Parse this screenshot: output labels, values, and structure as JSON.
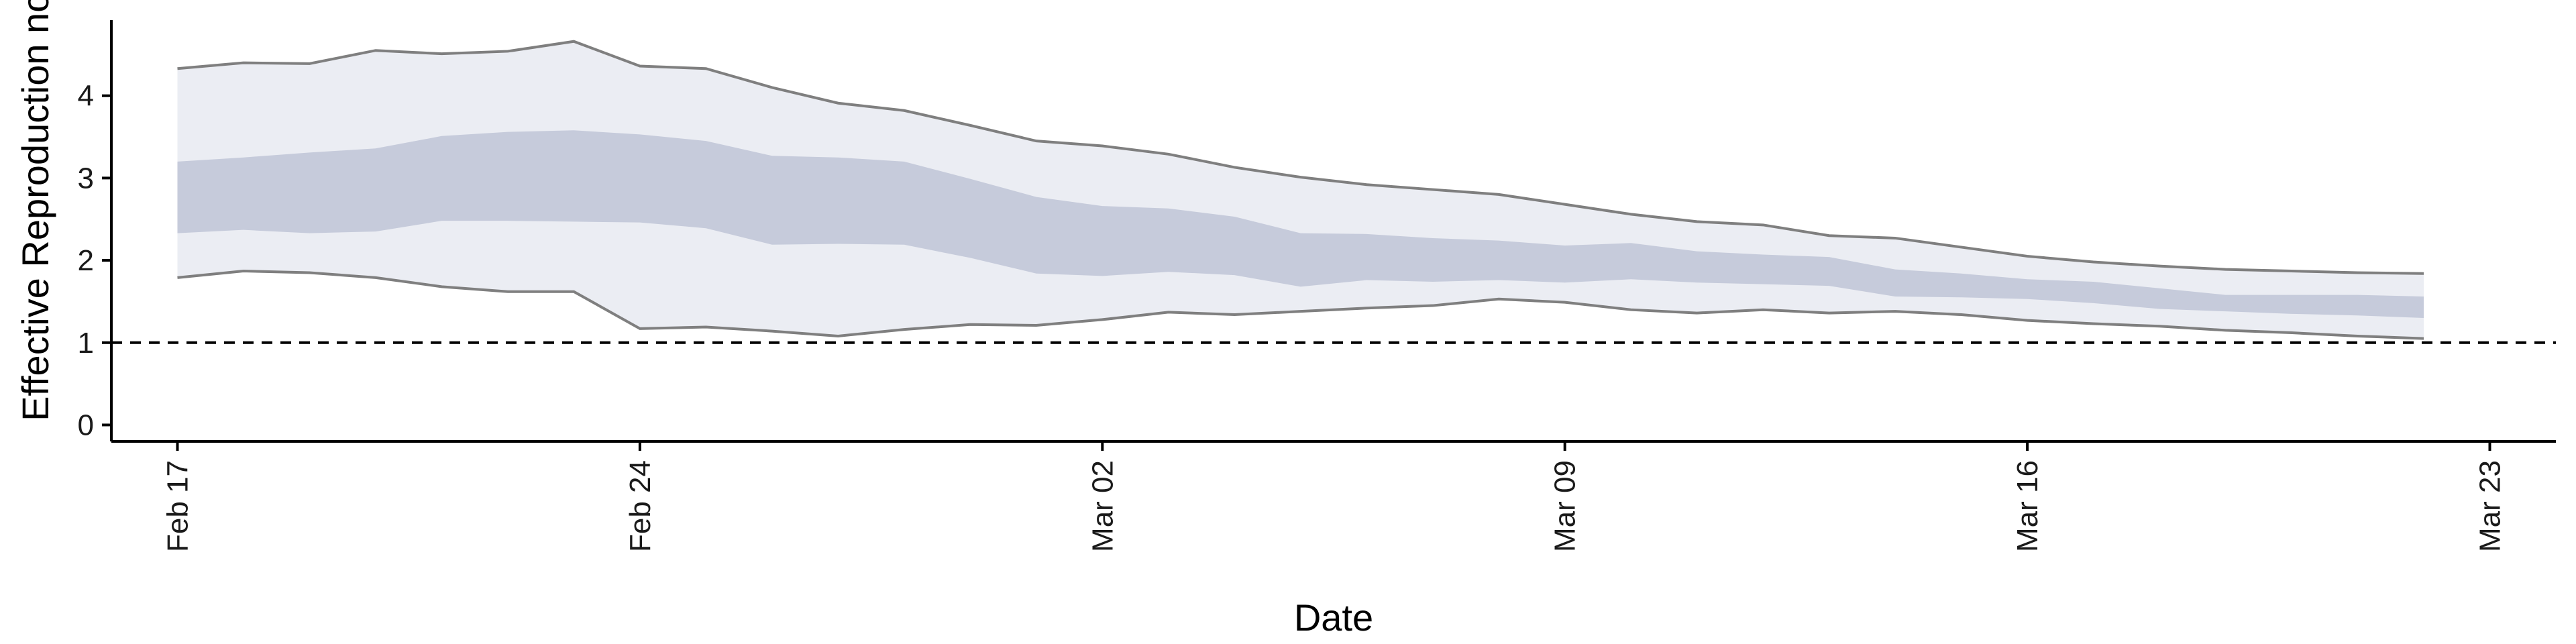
{
  "chart_data": {
    "type": "area",
    "ylabel": "Effective Reproduction no.",
    "xlabel": "Date",
    "x_ticks": [
      {
        "date": "2020-02-17",
        "label": "Feb 17"
      },
      {
        "date": "2020-02-24",
        "label": "Feb 24"
      },
      {
        "date": "2020-03-02",
        "label": "Mar 02"
      },
      {
        "date": "2020-03-09",
        "label": "Mar 09"
      },
      {
        "date": "2020-03-16",
        "label": "Mar 16"
      },
      {
        "date": "2020-03-23",
        "label": "Mar 23"
      }
    ],
    "y_ticks": [
      0,
      1,
      2,
      3,
      4
    ],
    "xlim": [
      "2020-02-16",
      "2020-03-24"
    ],
    "ylim": [
      -0.2,
      5.0
    ],
    "reference_line": {
      "y": 1,
      "style": "dashed",
      "color": "#000000"
    },
    "colors": {
      "outer_band": "#ebedf3",
      "inner_band": "#c6cbdb",
      "outer_edge": "#7f7f7f",
      "dashed_line": "#000000"
    },
    "x": [
      "2020-02-17",
      "2020-02-18",
      "2020-02-19",
      "2020-02-20",
      "2020-02-21",
      "2020-02-22",
      "2020-02-23",
      "2020-02-24",
      "2020-02-25",
      "2020-02-26",
      "2020-02-27",
      "2020-02-28",
      "2020-02-29",
      "2020-03-01",
      "2020-03-02",
      "2020-03-03",
      "2020-03-04",
      "2020-03-05",
      "2020-03-06",
      "2020-03-07",
      "2020-03-08",
      "2020-03-09",
      "2020-03-10",
      "2020-03-11",
      "2020-03-12",
      "2020-03-13",
      "2020-03-14",
      "2020-03-15",
      "2020-03-16",
      "2020-03-17",
      "2020-03-18",
      "2020-03-19",
      "2020-03-20",
      "2020-03-21",
      "2020-03-22"
    ],
    "series": [
      {
        "role": "outer_upper",
        "values": [
          4.33,
          4.4,
          4.39,
          4.55,
          4.51,
          4.54,
          4.66,
          4.36,
          4.33,
          4.1,
          3.91,
          3.82,
          3.64,
          3.45,
          3.39,
          3.29,
          3.13,
          3.01,
          2.92,
          2.86,
          2.8,
          2.68,
          2.56,
          2.47,
          2.43,
          2.3,
          2.27,
          2.16,
          2.05,
          1.98,
          1.93,
          1.89,
          1.87,
          1.85,
          1.84
        ]
      },
      {
        "role": "inner_upper",
        "values": [
          3.2,
          3.25,
          3.31,
          3.36,
          3.51,
          3.56,
          3.58,
          3.53,
          3.45,
          3.27,
          3.25,
          3.2,
          2.99,
          2.77,
          2.66,
          2.63,
          2.53,
          2.33,
          2.32,
          2.27,
          2.24,
          2.18,
          2.21,
          2.11,
          2.07,
          2.04,
          1.89,
          1.84,
          1.77,
          1.74,
          1.66,
          1.58,
          1.58,
          1.58,
          1.56
        ]
      },
      {
        "role": "inner_lower",
        "values": [
          2.33,
          2.37,
          2.33,
          2.35,
          2.48,
          2.48,
          2.47,
          2.46,
          2.39,
          2.19,
          2.2,
          2.19,
          2.03,
          1.84,
          1.81,
          1.86,
          1.82,
          1.68,
          1.76,
          1.74,
          1.76,
          1.73,
          1.77,
          1.73,
          1.71,
          1.69,
          1.56,
          1.55,
          1.53,
          1.48,
          1.41,
          1.38,
          1.35,
          1.33,
          1.3
        ]
      },
      {
        "role": "outer_lower",
        "values": [
          1.79,
          1.87,
          1.85,
          1.79,
          1.68,
          1.62,
          1.62,
          1.17,
          1.19,
          1.14,
          1.08,
          1.16,
          1.22,
          1.21,
          1.28,
          1.37,
          1.34,
          1.38,
          1.42,
          1.45,
          1.53,
          1.49,
          1.4,
          1.36,
          1.4,
          1.36,
          1.38,
          1.34,
          1.27,
          1.23,
          1.2,
          1.15,
          1.12,
          1.08,
          1.05
        ]
      }
    ]
  }
}
